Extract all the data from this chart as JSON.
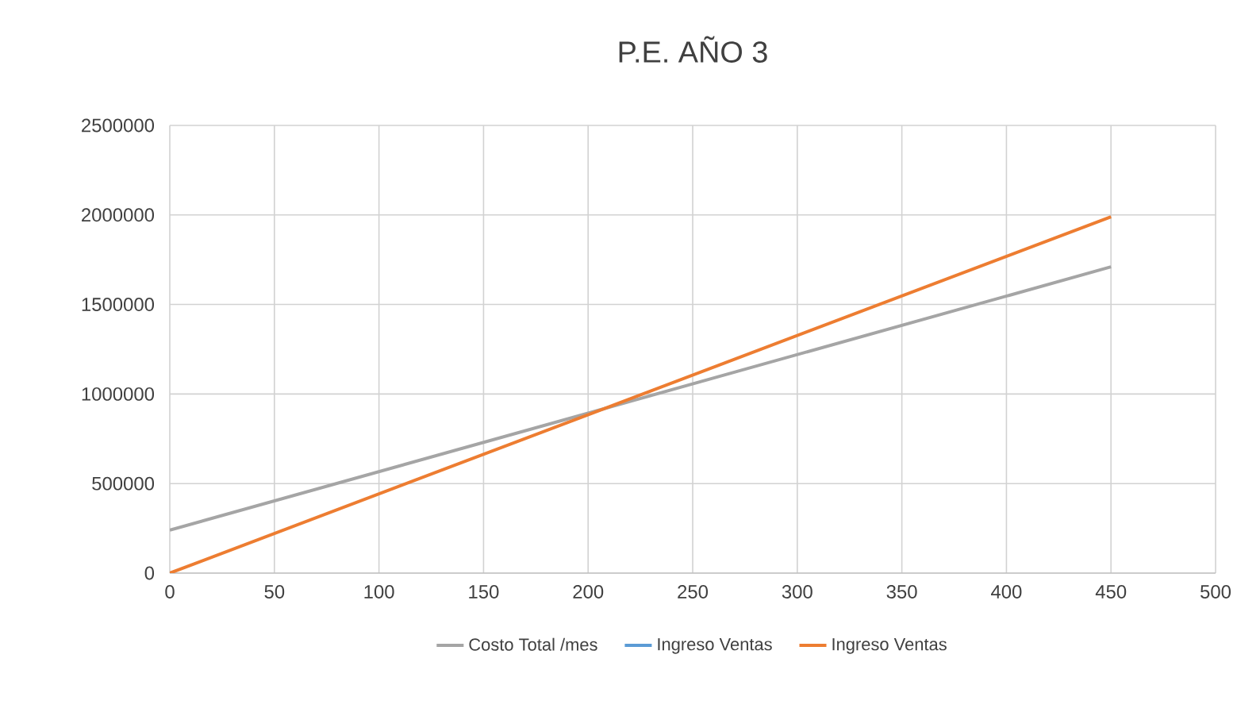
{
  "chart_data": {
    "type": "line",
    "title": "P.E. AÑO 3",
    "x": [
      0,
      450
    ],
    "series": [
      {
        "name": "Costo Total /mes",
        "color": "#a5a5a5",
        "values": [
          240000,
          1710000
        ]
      },
      {
        "name": "Ingreso Ventas",
        "color": "#5b9bd5",
        "values": [
          null,
          null
        ]
      },
      {
        "name": "Ingreso Ventas",
        "color": "#ed7d31",
        "values": [
          0,
          1990000
        ]
      }
    ],
    "xlim": [
      0,
      500
    ],
    "xticks": [
      0,
      50,
      100,
      150,
      200,
      250,
      300,
      350,
      400,
      450,
      500
    ],
    "ylim": [
      0,
      2500000
    ],
    "yticks": [
      0,
      500000,
      1000000,
      1500000,
      2000000,
      2500000
    ],
    "grid": true,
    "legend": "bottom",
    "marker": "none",
    "line_style": "solid"
  }
}
